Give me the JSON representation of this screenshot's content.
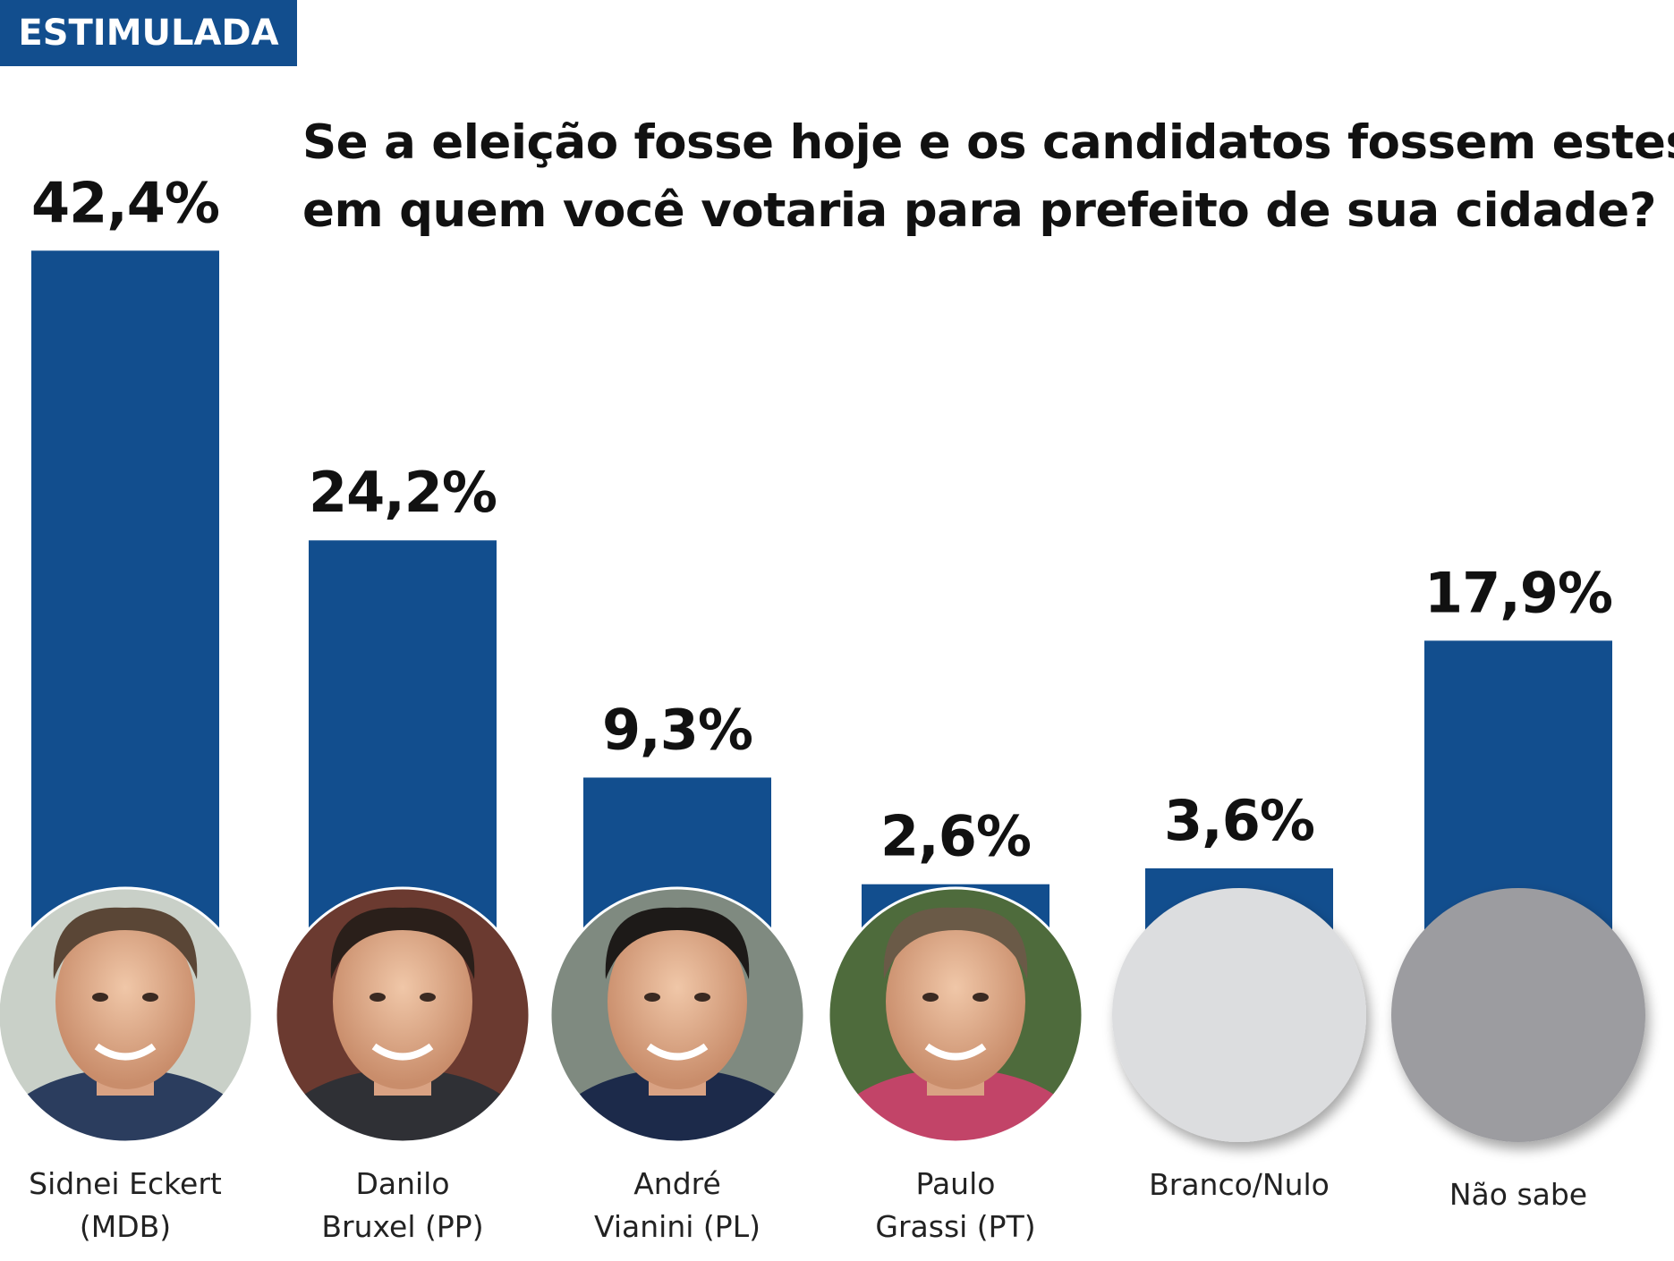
{
  "tag": "ESTIMULADA",
  "title_lines": [
    "Se a eleição fosse hoje e os candidatos fossem estes,",
    "em quem você votaria para prefeito de sua cidade?"
  ],
  "colors": {
    "bar": "#124e8e",
    "tag_bg": "#124e8e",
    "circle_light": "#dcdddf",
    "circle_dark": "#9c9ca0"
  },
  "chart_data": {
    "type": "bar",
    "title": "Se a eleição fosse hoje e os candidatos fossem estes, em quem você votaria para prefeito de sua cidade?",
    "categories": [
      "Sidnei Eckert (MDB)",
      "Danilo Bruxel (PP)",
      "André Vianini (PL)",
      "Paulo Grassi (PT)",
      "Branco/Nulo",
      "Não sabe"
    ],
    "values": [
      42.4,
      24.2,
      9.3,
      2.6,
      3.6,
      17.9
    ],
    "value_labels": [
      "42,4%",
      "24,2%",
      "9,3%",
      "2,6%",
      "3,6%",
      "17,9%"
    ],
    "label_lines": [
      [
        "Sidnei Eckert",
        "(MDB)"
      ],
      [
        "Danilo",
        "Bruxel (PP)"
      ],
      [
        "André",
        "Vianini (PL)"
      ],
      [
        "Paulo",
        "Grassi (PT)"
      ],
      [
        "Branco/Nulo"
      ],
      [
        "Não sabe"
      ]
    ],
    "avatar_types": [
      "photo",
      "photo",
      "photo",
      "photo",
      "blank-light",
      "blank-dark"
    ],
    "grid": false,
    "legend": "none"
  }
}
